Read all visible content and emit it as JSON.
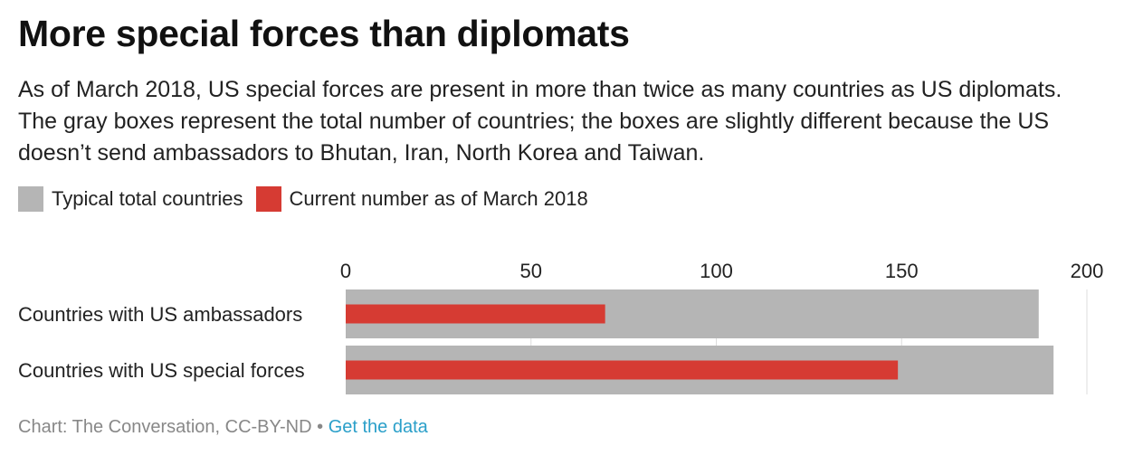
{
  "title": "More special forces than diplomats",
  "subtitle": "As of March 2018, US special forces are present in more than twice as many countries as US diplomats. The gray boxes represent the total number of countries; the boxes are slightly different because the US doesn’t send ambassadors to Bhutan, Iran, North Korea and Taiwan.",
  "legend": [
    {
      "label": "Typical total countries",
      "color": "#b5b5b5"
    },
    {
      "label": "Current number as of March 2018",
      "color": "#d63b33"
    }
  ],
  "footer": {
    "source": "Chart: The Conversation, CC-BY-ND",
    "separator": " • ",
    "link": "Get the data"
  },
  "chart_data": {
    "type": "bar",
    "orientation": "horizontal",
    "categories": [
      "Countries with US ambassadors",
      "Countries with US special forces"
    ],
    "series": [
      {
        "name": "Typical total countries",
        "values": [
          187,
          191
        ],
        "color": "#b5b5b5"
      },
      {
        "name": "Current number as of March 2018",
        "values": [
          70,
          149
        ],
        "color": "#d63b33"
      }
    ],
    "xlim": [
      0,
      200
    ],
    "xticks": [
      0,
      50,
      100,
      150,
      200
    ],
    "x_axis_position": "top",
    "grid": true,
    "legend_position": "top-left"
  }
}
